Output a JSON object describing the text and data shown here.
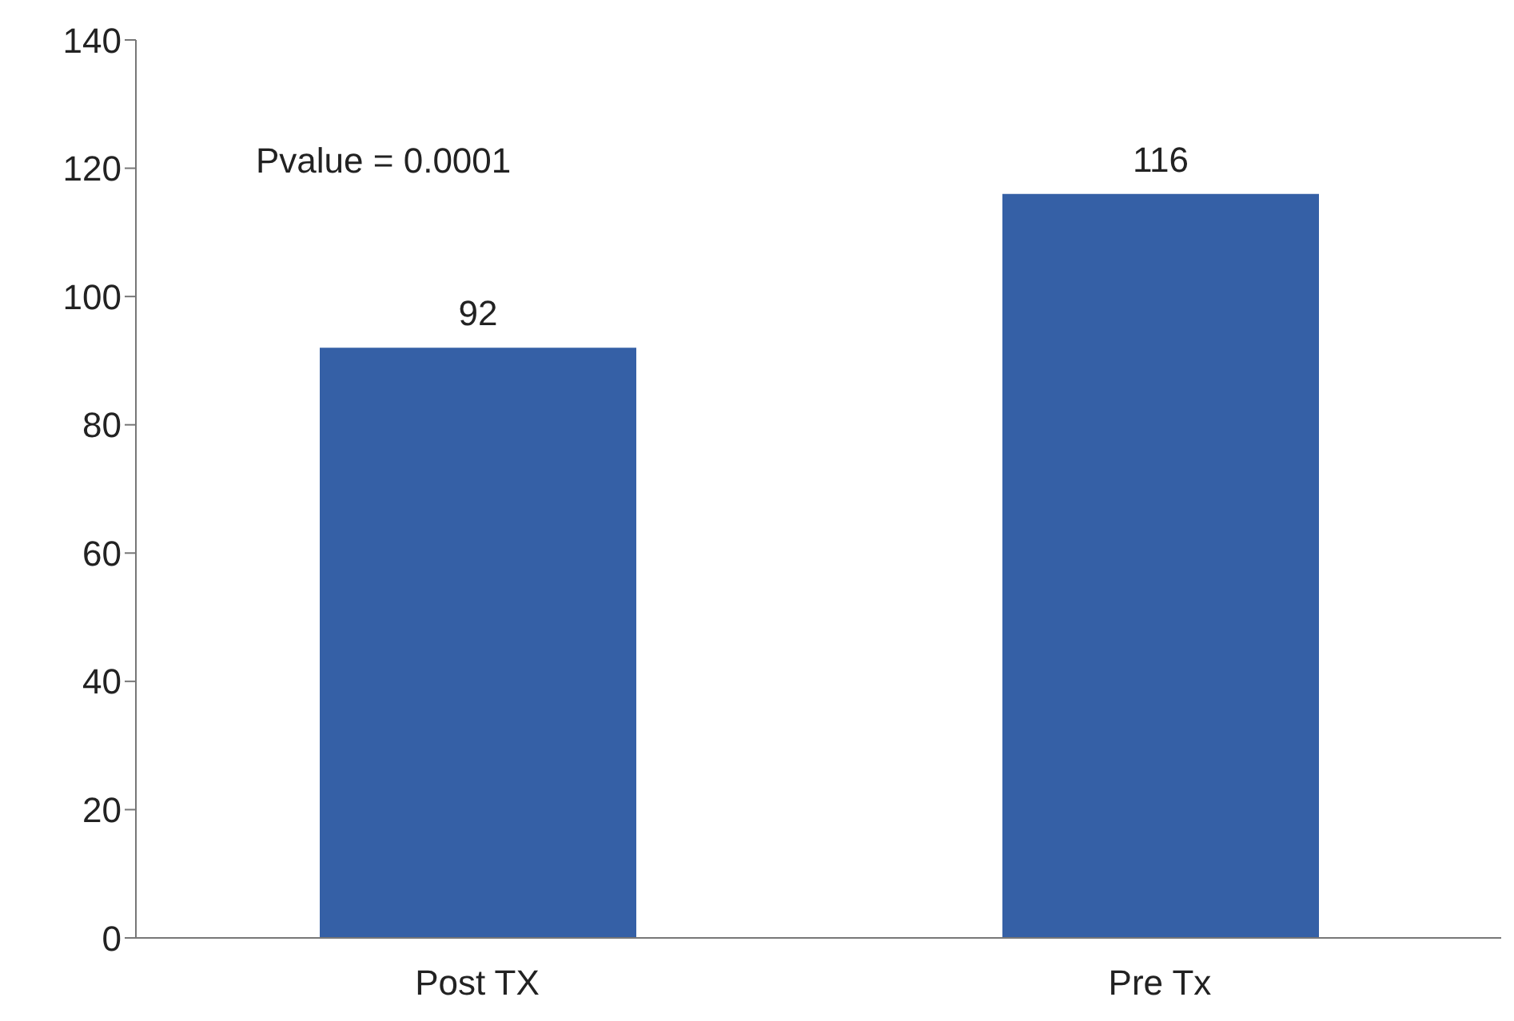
{
  "chart_data": {
    "type": "bar",
    "categories": [
      "Post TX",
      "Pre Tx"
    ],
    "values": [
      92,
      116
    ],
    "color": "#3560a6",
    "ylim": [
      0,
      140
    ],
    "yticks": [
      0,
      20,
      40,
      60,
      80,
      100,
      120,
      140
    ],
    "data_labels": true,
    "annotations": [
      "Pvalue = 0.0001"
    ]
  }
}
